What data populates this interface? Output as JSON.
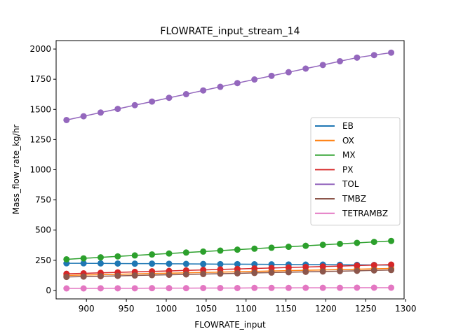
{
  "chart_data": {
    "type": "line",
    "title": "FLOWRATE_input_stream_14",
    "xlabel": "FLOWRATE_input",
    "ylabel": "Mass_flow_rate_kg/hr",
    "xlim": [
      862,
      1298
    ],
    "ylim": [
      -70,
      2070
    ],
    "xticks": [
      900,
      950,
      1000,
      1050,
      1100,
      1150,
      1200,
      1250,
      1300
    ],
    "yticks": [
      0,
      250,
      500,
      750,
      1000,
      1250,
      1500,
      1750,
      2000
    ],
    "x": [
      875,
      896.4,
      917.8,
      939.2,
      960.6,
      982.1,
      1003.5,
      1024.9,
      1046.3,
      1067.7,
      1089.1,
      1110.5,
      1131.9,
      1153.3,
      1174.7,
      1196.2,
      1217.6,
      1239,
      1260.4,
      1281.8
    ],
    "legend_position": "center-right",
    "grid": false,
    "series": [
      {
        "name": "EB",
        "color": "#1f77b4",
        "values": [
          225,
          225,
          224,
          223,
          222,
          222,
          221,
          220,
          219,
          218,
          218,
          217,
          216,
          215,
          214,
          214,
          213,
          212,
          211,
          210
        ]
      },
      {
        "name": "OX",
        "color": "#ff7f0e",
        "values": [
          125,
          128,
          131,
          134,
          137,
          140,
          143,
          146,
          149,
          152,
          155,
          158,
          161,
          164,
          167,
          170,
          173,
          176,
          179,
          182
        ]
      },
      {
        "name": "MX",
        "color": "#2ca02c",
        "values": [
          258,
          266,
          274,
          282,
          290,
          298,
          306,
          314,
          322,
          330,
          338,
          346,
          354,
          362,
          370,
          378,
          386,
          394,
          402,
          410
        ]
      },
      {
        "name": "PX",
        "color": "#d62728",
        "values": [
          138,
          142,
          146,
          150,
          154,
          158,
          162,
          166,
          170,
          174,
          178,
          182,
          186,
          190,
          194,
          198,
          202,
          206,
          210,
          214
        ]
      },
      {
        "name": "TOL",
        "color": "#9467bd",
        "values": [
          1412,
          1443,
          1474,
          1504,
          1535,
          1565,
          1596,
          1626,
          1657,
          1687,
          1718,
          1748,
          1778,
          1808,
          1838,
          1868,
          1899,
          1929,
          1950,
          1970
        ]
      },
      {
        "name": "TMBZ",
        "color": "#8c564b",
        "values": [
          112,
          115,
          118,
          121,
          124,
          127,
          130,
          133,
          136,
          139,
          142,
          145,
          148,
          151,
          154,
          157,
          160,
          163,
          166,
          169
        ]
      },
      {
        "name": "TETRAMBZ",
        "color": "#e377c2",
        "values": [
          17,
          17,
          18,
          18,
          18,
          19,
          19,
          19,
          20,
          20,
          20,
          21,
          21,
          21,
          22,
          22,
          22,
          23,
          23,
          23
        ]
      }
    ]
  }
}
